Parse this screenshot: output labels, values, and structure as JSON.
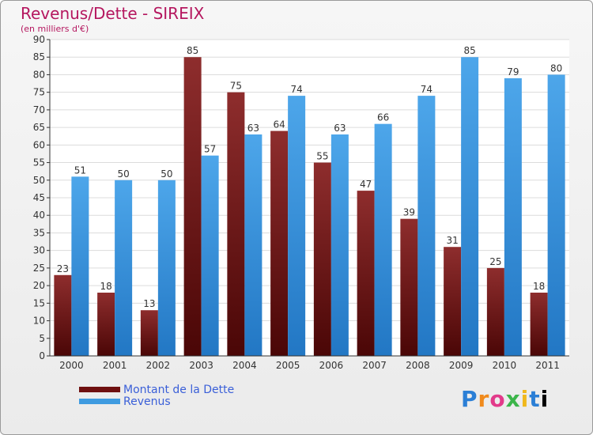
{
  "chart_data": {
    "type": "bar",
    "title": "Revenus/Dette - SIREIX",
    "subtitle": "(en milliers d'€)",
    "categories": [
      "2000",
      "2001",
      "2002",
      "2003",
      "2004",
      "2005",
      "2006",
      "2007",
      "2008",
      "2009",
      "2010",
      "2011"
    ],
    "series": [
      {
        "name": "Montant de la Dette",
        "color": "#7a1d1d",
        "values": [
          23,
          18,
          13,
          85,
          75,
          64,
          55,
          47,
          39,
          31,
          25,
          18
        ]
      },
      {
        "name": "Revenus",
        "color": "#3f9be0",
        "values": [
          51,
          50,
          50,
          57,
          63,
          74,
          63,
          66,
          74,
          85,
          79,
          80
        ]
      }
    ],
    "ylim": [
      0,
      90
    ],
    "yticks": [
      0,
      5,
      10,
      15,
      20,
      25,
      30,
      35,
      40,
      45,
      50,
      55,
      60,
      65,
      70,
      75,
      80,
      85,
      90
    ],
    "grid": true,
    "legend_position": "bottom-left"
  },
  "logo": {
    "text": [
      "P",
      "r",
      "o",
      "x",
      "i",
      "t",
      "i"
    ]
  }
}
